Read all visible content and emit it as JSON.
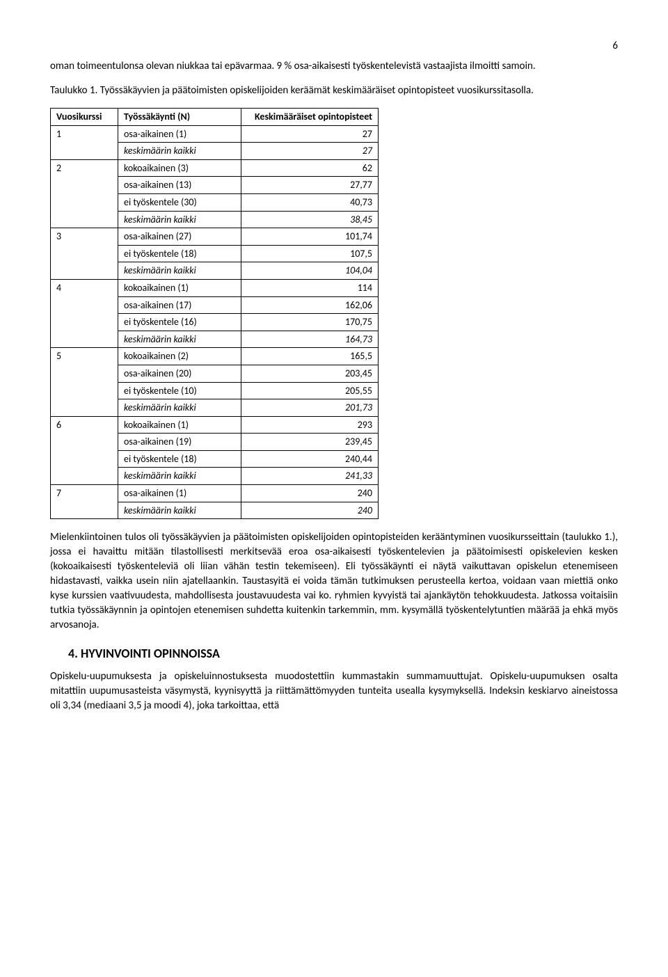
{
  "pageNumber": "6",
  "para1": "oman toimeentulonsa olevan niukkaa tai epävarmaa. 9 % osa-aikaisesti työskentelevistä vastaajista ilmoitti samoin.",
  "para2": "Taulukko 1. Työssäkäyvien ja päätoimisten opiskelijoiden keräämät keskimääräiset opintopisteet vuosikurssitasolla.",
  "table": {
    "headers": [
      "Vuosikurssi",
      "Työssäkäynti (N)",
      "Keskimääräiset opintopisteet"
    ],
    "groups": [
      {
        "idx": "1",
        "rows": [
          {
            "label": "osa-aikainen (1)",
            "val": "27",
            "italic": false
          },
          {
            "label": "keskimäärin kaikki",
            "val": "27",
            "italic": true
          }
        ]
      },
      {
        "idx": "2",
        "rows": [
          {
            "label": "kokoaikainen (3)",
            "val": "62",
            "italic": false
          },
          {
            "label": "osa-aikainen (13)",
            "val": "27,77",
            "italic": false
          },
          {
            "label": "ei työskentele (30)",
            "val": "40,73",
            "italic": false
          },
          {
            "label": "keskimäärin kaikki",
            "val": "38,45",
            "italic": true
          }
        ]
      },
      {
        "idx": "3",
        "rows": [
          {
            "label": "osa-aikainen (27)",
            "val": "101,74",
            "italic": false
          },
          {
            "label": "ei työskentele (18)",
            "val": "107,5",
            "italic": false
          },
          {
            "label": "keskimäärin kaikki",
            "val": "104,04",
            "italic": true
          }
        ]
      },
      {
        "idx": "4",
        "rows": [
          {
            "label": "kokoaikainen (1)",
            "val": "114",
            "italic": false
          },
          {
            "label": "osa-aikainen (17)",
            "val": "162,06",
            "italic": false
          },
          {
            "label": "ei työskentele (16)",
            "val": "170,75",
            "italic": false
          },
          {
            "label": "keskimäärin kaikki",
            "val": "164,73",
            "italic": true
          }
        ]
      },
      {
        "idx": "5",
        "rows": [
          {
            "label": "kokoaikainen (2)",
            "val": "165,5",
            "italic": false
          },
          {
            "label": "osa-aikainen (20)",
            "val": "203,45",
            "italic": false
          },
          {
            "label": "ei työskentele (10)",
            "val": "205,55",
            "italic": false
          },
          {
            "label": "keskimäärin kaikki",
            "val": "201,73",
            "italic": true
          }
        ]
      },
      {
        "idx": "6",
        "rows": [
          {
            "label": "kokoaikainen (1)",
            "val": "293",
            "italic": false
          },
          {
            "label": "osa-aikainen (19)",
            "val": "239,45",
            "italic": false
          },
          {
            "label": "ei työskentele (18)",
            "val": "240,44",
            "italic": false
          },
          {
            "label": "keskimäärin kaikki",
            "val": "241,33",
            "italic": true
          }
        ]
      },
      {
        "idx": "7",
        "rows": [
          {
            "label": "osa-aikainen (1)",
            "val": "240",
            "italic": false
          },
          {
            "label": "keskimäärin kaikki",
            "val": "240",
            "italic": true
          }
        ]
      }
    ]
  },
  "para3": "Mielenkiintoinen tulos oli työssäkäyvien ja päätoimisten opiskelijoiden opintopisteiden kerääntyminen vuosikursseittain (taulukko 1.), jossa ei havaittu mitään tilastollisesti merkitsevää eroa osa-aikaisesti työskentelevien ja päätoimisesti opiskelevien kesken (kokoaikaisesti työskenteleviä oli liian vähän testin tekemiseen). Eli työssäkäynti ei näytä vaikuttavan opiskelun etenemiseen hidastavasti, vaikka usein niin ajatellaankin. Taustasyitä ei voida tämän tutkimuksen perusteella kertoa, voidaan vaan miettiä onko kyse kurssien vaativuudesta, mahdollisesta joustavuudesta vai ko. ryhmien kyvyistä tai ajankäytön tehokkuudesta. Jatkossa voitaisiin tutkia työssäkäynnin ja opintojen etenemisen suhdetta kuitenkin tarkemmin, mm. kysymällä työskentelytuntien määrää ja ehkä myös arvosanoja.",
  "heading": "4. HYVINVOINTI OPINNOISSA",
  "para4": "Opiskelu-uupumuksesta ja opiskeluinnostuksesta muodostettiin kummastakin summamuuttujat. Opiskelu-uupumuksen osalta mitattiin uupumusasteista väsymystä, kyynisyyttä ja riittämättömyyden tunteita usealla kysymyksellä. Indeksin keskiarvo aineistossa oli 3,34 (mediaani 3,5 ja moodi 4), joka tarkoittaa, että"
}
